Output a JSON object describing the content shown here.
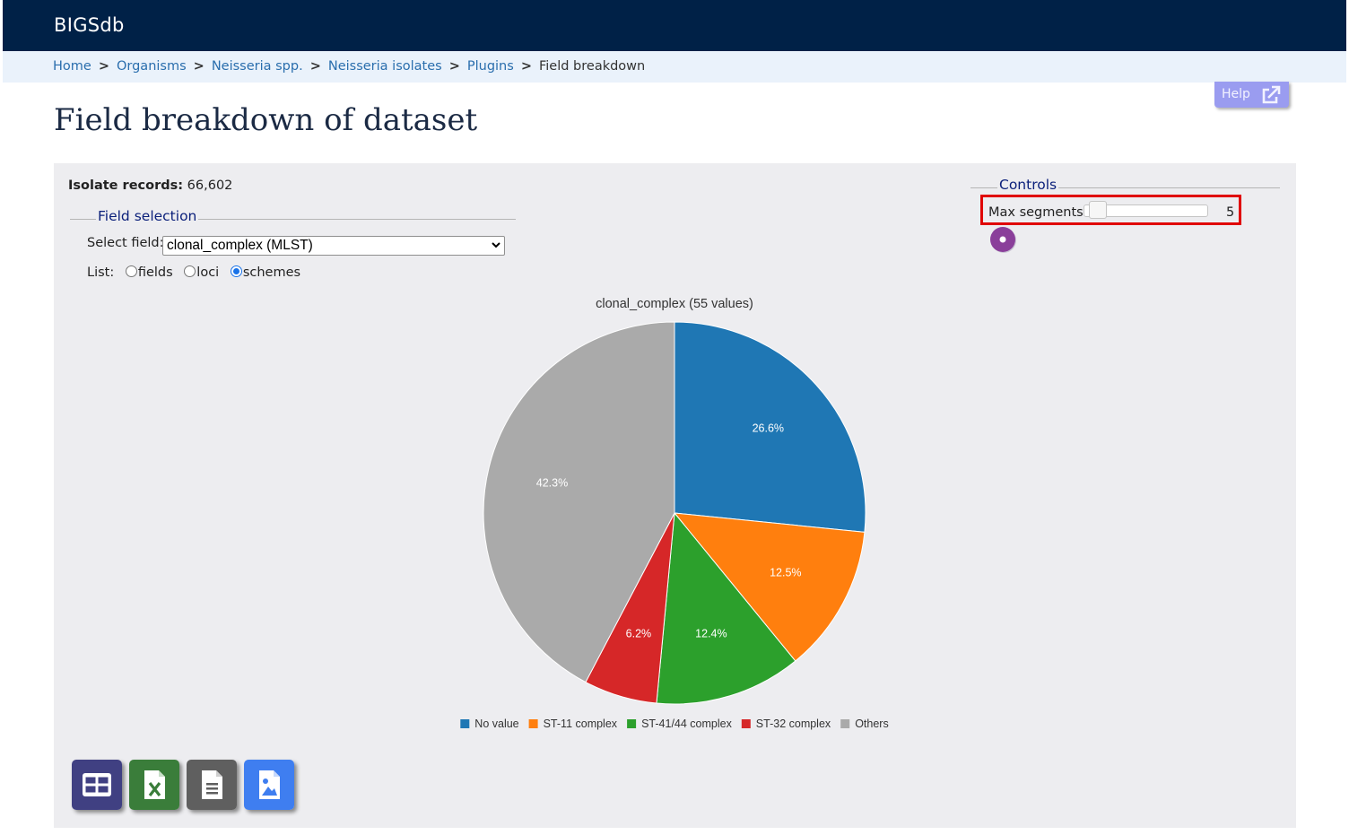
{
  "header": {
    "brand": "BIGSdb"
  },
  "breadcrumb": {
    "items": [
      "Home",
      "Organisms",
      "Neisseria spp.",
      "Neisseria isolates",
      "Plugins"
    ],
    "current": "Field breakdown",
    "separator": ">"
  },
  "help": {
    "label": "Help",
    "icon": "external-link-icon"
  },
  "page": {
    "title": "Field breakdown of dataset"
  },
  "records": {
    "label": "Isolate records:",
    "value": "66,602"
  },
  "field_selection": {
    "legend": "Field selection",
    "select_label": "Select field:",
    "selected": "clonal_complex (MLST)",
    "list_label": "List:",
    "options": [
      {
        "label": "fields",
        "checked": false
      },
      {
        "label": "loci",
        "checked": false
      },
      {
        "label": "schemes",
        "checked": true
      }
    ]
  },
  "controls": {
    "legend": "Controls",
    "max_segments_label": "Max segments:",
    "max_segments_value": "5",
    "slider_value": 0.05
  },
  "chart_data": {
    "type": "pie",
    "title": "clonal_complex (55 values)",
    "slices": [
      {
        "label": "No value",
        "value": 26.6,
        "display": "26.6%",
        "color": "#1f77b4"
      },
      {
        "label": "ST-11 complex",
        "value": 12.5,
        "display": "12.5%",
        "color": "#ff7f0e"
      },
      {
        "label": "ST-41/44 complex",
        "value": 12.4,
        "display": "12.4%",
        "color": "#2ca02c"
      },
      {
        "label": "ST-32 complex",
        "value": 6.2,
        "display": "6.2%",
        "color": "#d62728"
      },
      {
        "label": "Others",
        "value": 42.3,
        "display": "42.3%",
        "color": "#aaaaaa"
      }
    ],
    "legend_position": "bottom"
  },
  "export_buttons": [
    {
      "name": "table-export",
      "icon": "table-icon",
      "color": "#404082"
    },
    {
      "name": "excel-export",
      "icon": "excel-icon",
      "color": "#3a7d3a"
    },
    {
      "name": "text-export",
      "icon": "text-file-icon",
      "color": "#5f5f5f"
    },
    {
      "name": "image-export",
      "icon": "image-file-icon",
      "color": "#3f7ef0"
    }
  ]
}
